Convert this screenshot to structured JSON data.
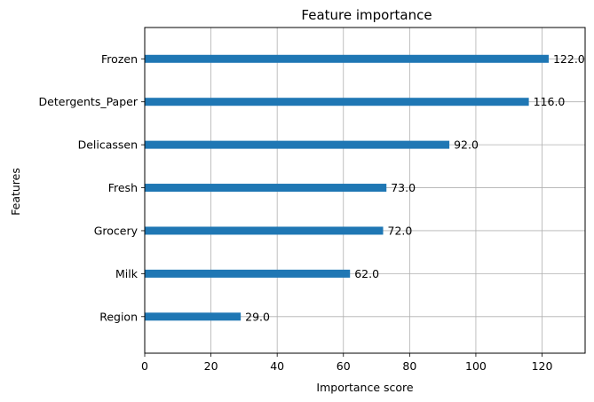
{
  "chart_data": {
    "type": "bar",
    "orientation": "horizontal",
    "title": "Feature importance",
    "xlabel": "Importance score",
    "ylabel": "Features",
    "xlim": [
      0,
      133
    ],
    "xticks": [
      0,
      20,
      40,
      60,
      80,
      100,
      120
    ],
    "grid": true,
    "bar_color": "#1f77b4",
    "categories": [
      "Region",
      "Milk",
      "Grocery",
      "Fresh",
      "Delicassen",
      "Detergents_Paper",
      "Frozen"
    ],
    "values": [
      29,
      62,
      72,
      73,
      92,
      116,
      122
    ],
    "data_labels": [
      "29.0",
      "62.0",
      "72.0",
      "73.0",
      "92.0",
      "116.0",
      "122.0"
    ]
  }
}
